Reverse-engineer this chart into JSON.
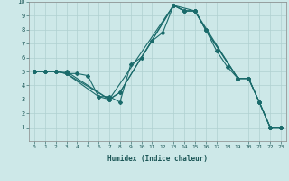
{
  "xlabel": "Humidex (Indice chaleur)",
  "xlim": [
    -0.5,
    23.5
  ],
  "ylim": [
    0,
    10
  ],
  "xticks": [
    0,
    1,
    2,
    3,
    4,
    5,
    6,
    7,
    8,
    9,
    10,
    11,
    12,
    13,
    14,
    15,
    16,
    17,
    18,
    19,
    20,
    21,
    22,
    23
  ],
  "yticks": [
    1,
    2,
    3,
    4,
    5,
    6,
    7,
    8,
    9,
    10
  ],
  "bg_color": "#cde8e8",
  "grid_color": "#b0d0d0",
  "line_color": "#1a6b6b",
  "lines": [
    {
      "x": [
        0,
        1,
        2,
        3,
        4,
        5,
        6,
        7,
        8,
        9,
        10,
        11,
        12,
        13,
        14,
        15,
        16,
        17,
        18,
        19,
        20,
        21,
        22,
        23
      ],
      "y": [
        5,
        5,
        5,
        4.85,
        4.85,
        4.7,
        3.2,
        3.2,
        2.8,
        5.5,
        6.0,
        7.2,
        7.8,
        9.75,
        9.35,
        9.35,
        8.0,
        6.5,
        5.35,
        4.5,
        4.5,
        2.8,
        1.0,
        1.0
      ]
    },
    {
      "x": [
        0,
        1,
        2,
        3,
        7,
        13,
        14,
        15,
        19,
        20,
        21,
        22,
        23
      ],
      "y": [
        5,
        5,
        5,
        5,
        3.0,
        9.75,
        9.35,
        9.35,
        4.5,
        4.5,
        2.8,
        1.0,
        1.0
      ]
    },
    {
      "x": [
        0,
        1,
        2,
        3,
        7,
        8,
        13,
        15,
        16,
        19,
        20,
        21,
        22,
        23
      ],
      "y": [
        5,
        5,
        5,
        4.85,
        3.0,
        3.5,
        9.75,
        9.35,
        8.0,
        4.5,
        4.5,
        2.8,
        1.0,
        1.0
      ]
    },
    {
      "x": [
        0,
        1,
        2,
        3,
        6,
        7,
        8,
        13,
        14,
        15,
        16,
        19,
        20,
        21,
        22,
        23
      ],
      "y": [
        5,
        5,
        5,
        4.85,
        3.2,
        3.0,
        3.5,
        9.75,
        9.35,
        9.35,
        8.0,
        4.5,
        4.5,
        2.8,
        1.0,
        1.0
      ]
    }
  ]
}
